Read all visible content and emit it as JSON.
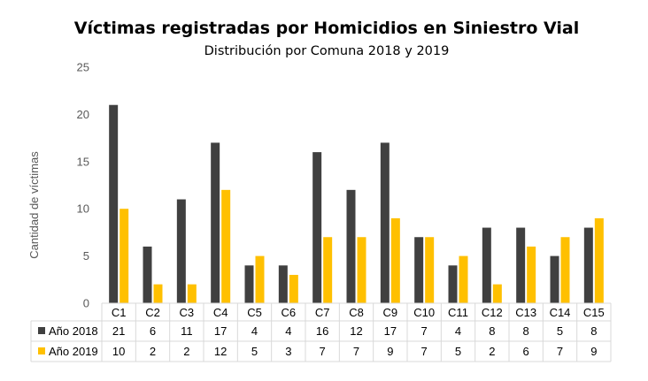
{
  "chart_data": {
    "type": "bar",
    "title": "Víctimas registradas por Homicidios en Siniestro Vial",
    "subtitle": "Distribución por Comuna 2018 y 2019",
    "ylabel": "Cantidad de víctimas",
    "xlabel": "",
    "ylim": [
      0,
      25
    ],
    "yticks": [
      "0",
      "5",
      "10",
      "15",
      "20",
      "25"
    ],
    "grid": false,
    "legend": "data-table",
    "categories": [
      "C1",
      "C2",
      "C3",
      "C4",
      "C5",
      "C6",
      "C7",
      "C8",
      "C9",
      "C10",
      "C11",
      "C12",
      "C13",
      "C14",
      "C15"
    ],
    "series": [
      {
        "name": "Año 2018",
        "color": "#404040",
        "values": [
          21,
          6,
          11,
          17,
          4,
          4,
          16,
          12,
          17,
          7,
          4,
          8,
          8,
          5,
          8
        ]
      },
      {
        "name": "Año 2019",
        "color": "#FFC000",
        "values": [
          10,
          2,
          2,
          12,
          5,
          3,
          7,
          7,
          9,
          7,
          5,
          2,
          6,
          7,
          9
        ]
      }
    ]
  }
}
